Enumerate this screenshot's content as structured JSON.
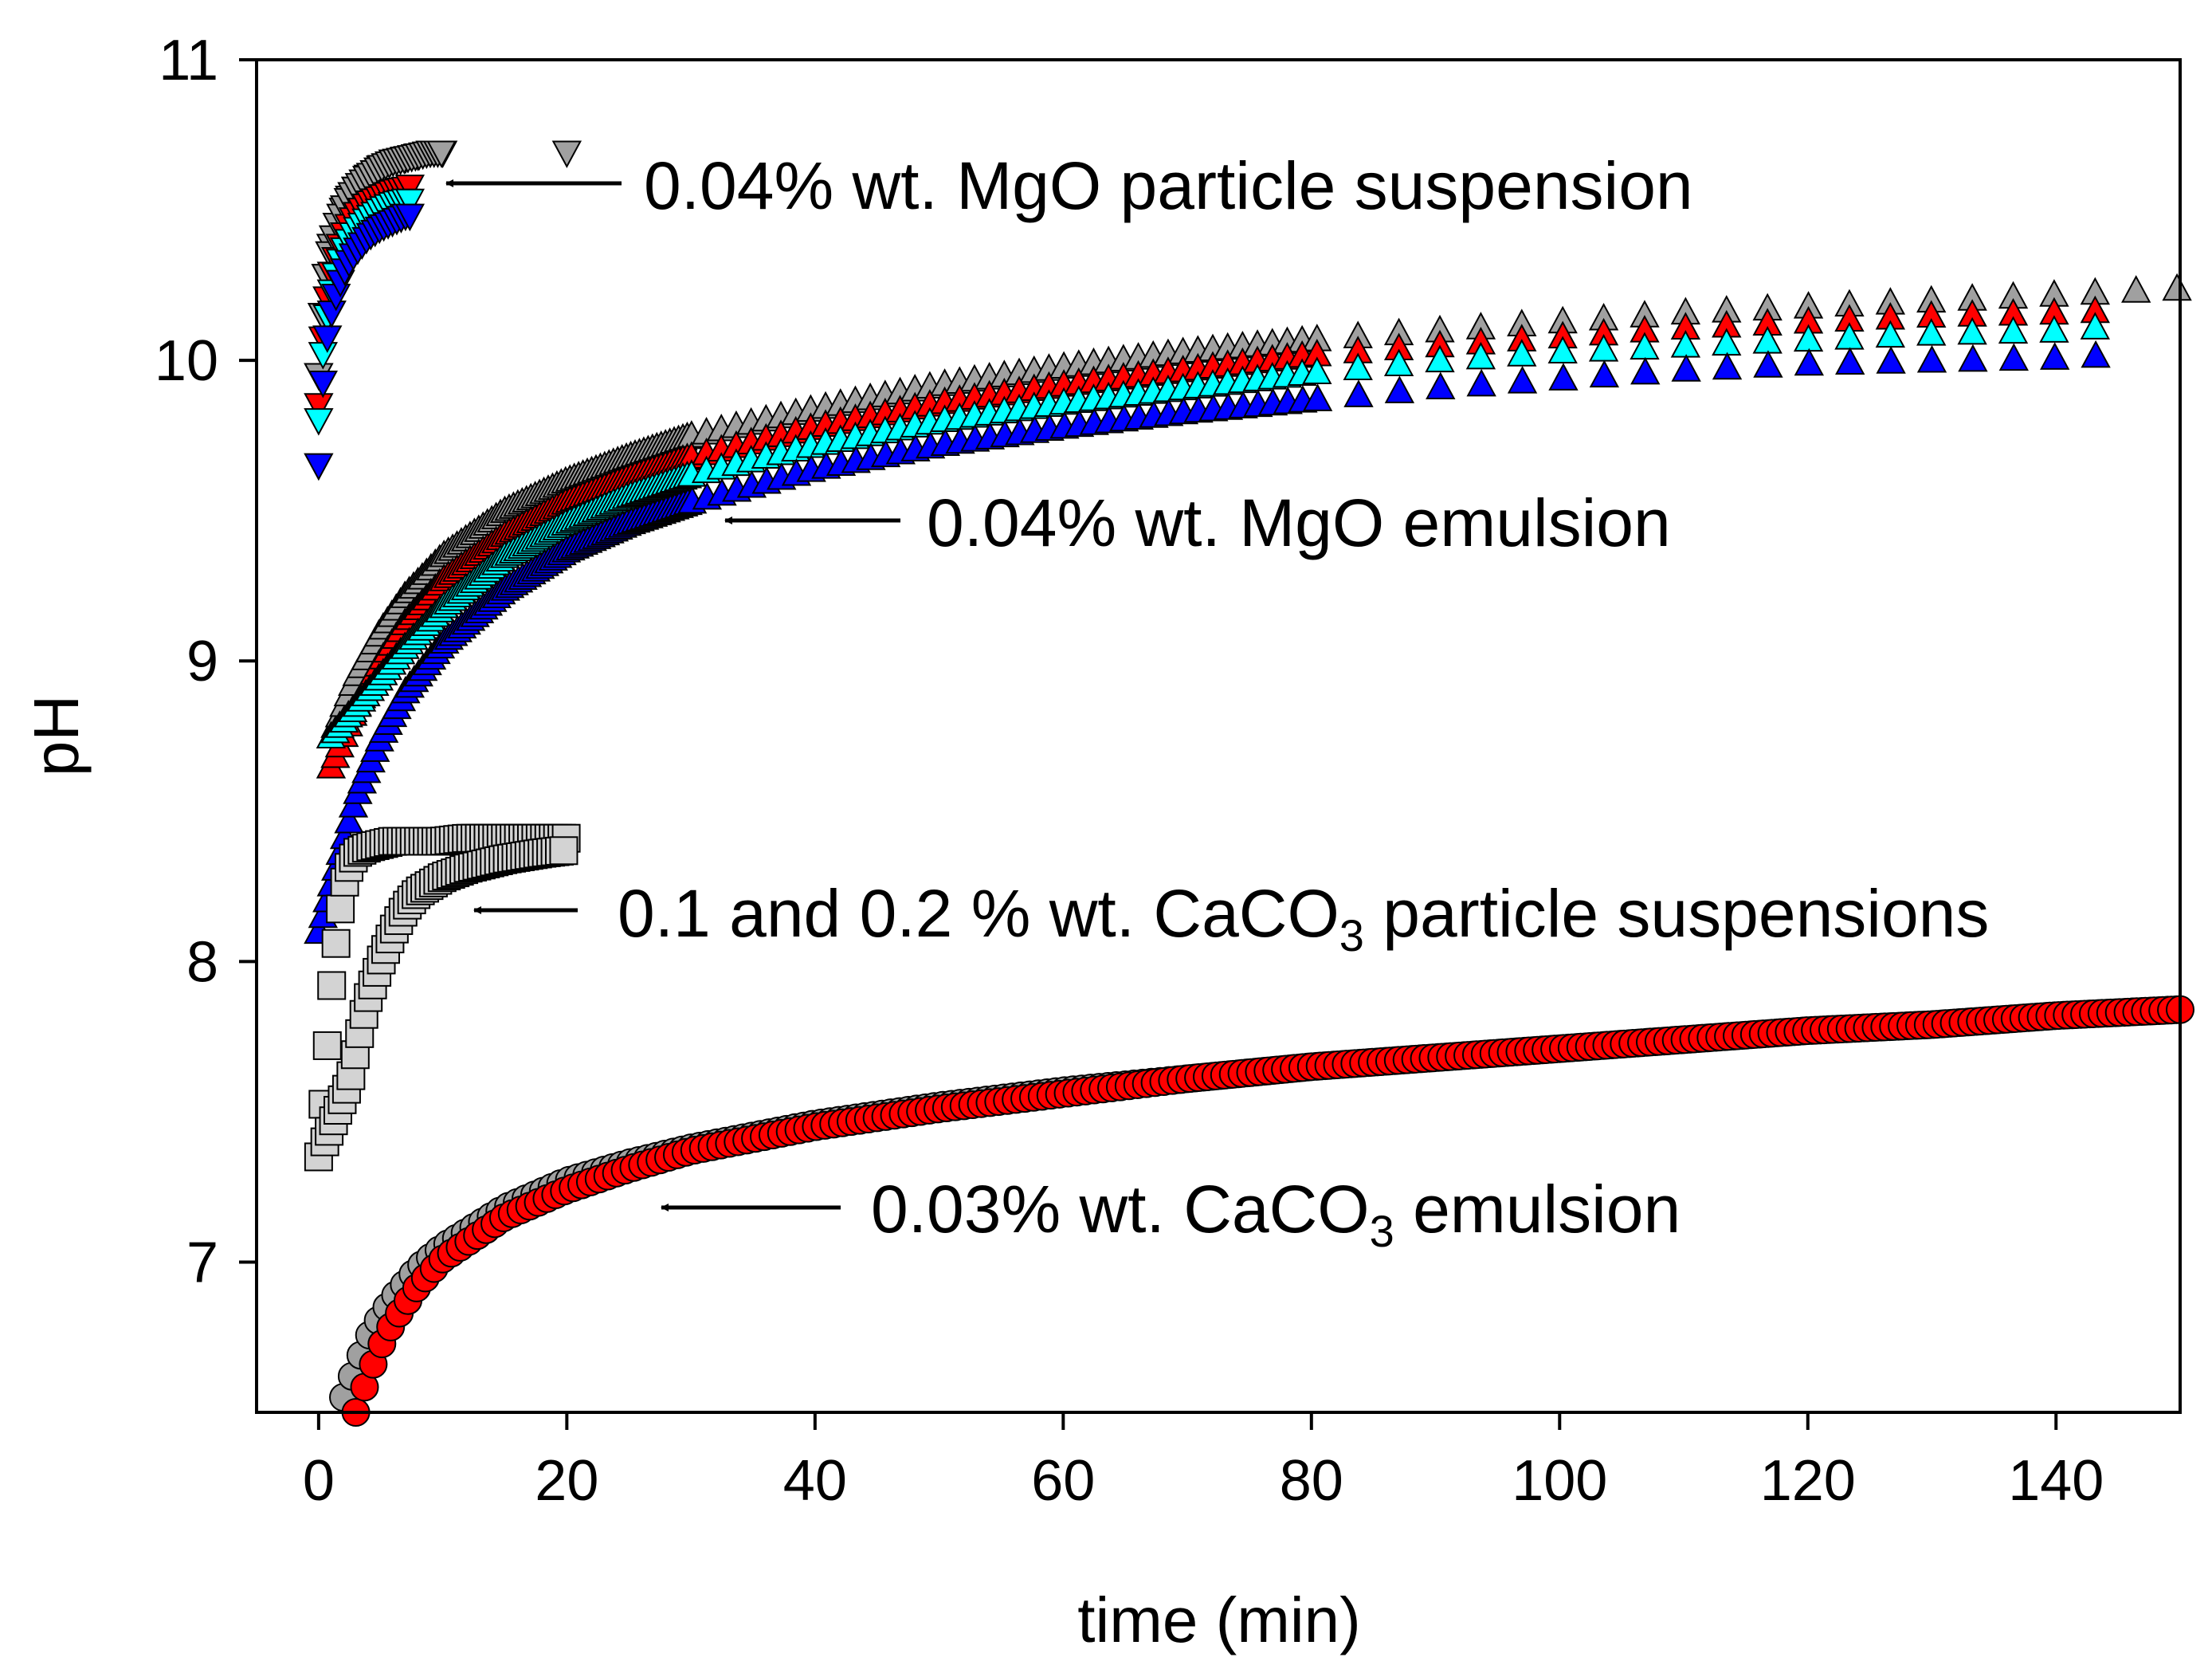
{
  "chart_data": {
    "type": "scatter",
    "title": "",
    "xlabel": "time (min)",
    "ylabel": "pH",
    "xlim": [
      -5,
      150
    ],
    "ylim": [
      6.5,
      11
    ],
    "xticks": [
      0,
      20,
      40,
      60,
      80,
      100,
      120,
      140
    ],
    "yticks": [
      7,
      8,
      9,
      10,
      11
    ],
    "grid": false,
    "legend": "none",
    "series": [
      {
        "name": "MgO particle suspension (gray)",
        "marker": "triangle-down",
        "color": "#a0a0a0",
        "x": [
          0,
          0.3,
          0.6,
          1,
          1.5,
          2,
          2.5,
          3,
          4,
          5,
          6,
          7,
          8,
          9,
          10,
          20
        ],
        "y": [
          9.95,
          10.15,
          10.28,
          10.38,
          10.45,
          10.5,
          10.54,
          10.57,
          10.61,
          10.64,
          10.66,
          10.67,
          10.68,
          10.69,
          10.69,
          10.69
        ]
      },
      {
        "name": "MgO particle suspension (red)",
        "marker": "triangle-down",
        "color": "#ff0000",
        "x": [
          0,
          0.3,
          0.6,
          1,
          1.5,
          2,
          2.5,
          3,
          4,
          5,
          6,
          7,
          7.5
        ],
        "y": [
          9.85,
          10.05,
          10.18,
          10.28,
          10.35,
          10.41,
          10.45,
          10.48,
          10.52,
          10.54,
          10.56,
          10.57,
          10.58
        ]
      },
      {
        "name": "MgO particle suspension (cyan)",
        "marker": "triangle-down",
        "color": "#00ffff",
        "x": [
          0,
          0.3,
          0.6,
          1,
          1.5,
          2,
          2.5,
          3,
          4,
          5,
          6,
          7,
          7.5
        ],
        "y": [
          9.8,
          10.0,
          10.12,
          10.22,
          10.3,
          10.36,
          10.4,
          10.43,
          10.47,
          10.5,
          10.52,
          10.53,
          10.53
        ]
      },
      {
        "name": "MgO particle suspension (blue)",
        "marker": "triangle-down",
        "color": "#0000ff",
        "x": [
          0,
          0.3,
          0.6,
          1,
          1.5,
          2,
          2.5,
          3,
          4,
          5,
          6,
          7,
          7.5
        ],
        "y": [
          9.65,
          9.9,
          10.05,
          10.15,
          10.23,
          10.29,
          10.33,
          10.36,
          10.41,
          10.44,
          10.46,
          10.48,
          10.48
        ]
      },
      {
        "name": "MgO emulsion (gray)",
        "marker": "triangle-up",
        "color": "#a0a0a0",
        "x": [
          1,
          2,
          3,
          5,
          7,
          10,
          15,
          20,
          25,
          30,
          40,
          50,
          60,
          70,
          80,
          90,
          100,
          110,
          120,
          130,
          140,
          150
        ],
        "y": [
          8.75,
          8.85,
          8.95,
          9.1,
          9.22,
          9.35,
          9.5,
          9.6,
          9.68,
          9.75,
          9.84,
          9.92,
          9.98,
          10.03,
          10.07,
          10.1,
          10.13,
          10.16,
          10.18,
          10.2,
          10.22,
          10.24
        ]
      },
      {
        "name": "MgO emulsion (red)",
        "marker": "triangle-up",
        "color": "#ff0000",
        "x": [
          1,
          2,
          3,
          5,
          7,
          10,
          15,
          20,
          25,
          30,
          40,
          50,
          60,
          70,
          80,
          90,
          100,
          110,
          120,
          130,
          140,
          146
        ],
        "y": [
          8.65,
          8.75,
          8.85,
          9.0,
          9.13,
          9.27,
          9.42,
          9.53,
          9.61,
          9.68,
          9.78,
          9.86,
          9.92,
          9.97,
          10.02,
          10.05,
          10.08,
          10.11,
          10.13,
          10.15,
          10.16,
          10.17
        ]
      },
      {
        "name": "MgO emulsion (cyan)",
        "marker": "triangle-up",
        "color": "#00ffff",
        "x": [
          1,
          2,
          3,
          5,
          7,
          10,
          15,
          20,
          25,
          30,
          40,
          50,
          60,
          70,
          80,
          90,
          100,
          110,
          120,
          130,
          140,
          146
        ],
        "y": [
          8.75,
          8.8,
          8.85,
          8.95,
          9.05,
          9.18,
          9.35,
          9.46,
          9.55,
          9.62,
          9.72,
          9.8,
          9.86,
          9.91,
          9.96,
          10.0,
          10.03,
          10.05,
          10.07,
          10.09,
          10.1,
          10.12
        ]
      },
      {
        "name": "MgO emulsion (blue)",
        "marker": "triangle-up",
        "color": "#0000ff",
        "x": [
          0,
          1,
          2,
          3,
          5,
          7,
          10,
          15,
          20,
          25,
          30,
          40,
          50,
          60,
          70,
          80,
          90,
          100,
          110,
          120,
          130,
          140,
          145
        ],
        "y": [
          8.1,
          8.25,
          8.4,
          8.55,
          8.75,
          8.9,
          9.06,
          9.24,
          9.37,
          9.46,
          9.53,
          9.64,
          9.72,
          9.78,
          9.83,
          9.87,
          9.91,
          9.94,
          9.97,
          9.99,
          10.0,
          10.01,
          10.02
        ]
      },
      {
        "name": "CaCO3 particle suspension 0.1%",
        "marker": "square",
        "color": "#d3d3d3",
        "x": [
          0,
          0.5,
          1,
          1.5,
          2,
          2.5,
          3,
          4,
          5,
          6,
          8,
          10,
          12,
          15,
          18,
          20
        ],
        "y": [
          7.35,
          7.6,
          7.9,
          8.1,
          8.25,
          8.32,
          8.36,
          8.38,
          8.39,
          8.4,
          8.4,
          8.4,
          8.41,
          8.41,
          8.41,
          8.41
        ]
      },
      {
        "name": "CaCO3 particle suspension 0.2%",
        "marker": "square",
        "color": "#d3d3d3",
        "x": [
          0.5,
          1,
          1.5,
          2,
          2.5,
          3,
          3.5,
          4,
          5,
          6,
          7,
          8,
          10,
          12,
          15,
          18,
          20
        ],
        "y": [
          7.4,
          7.45,
          7.5,
          7.55,
          7.6,
          7.7,
          7.8,
          7.88,
          8.0,
          8.1,
          8.18,
          8.23,
          8.28,
          8.31,
          8.34,
          8.36,
          8.37
        ]
      },
      {
        "name": "CaCO3 emulsion (gray)",
        "marker": "circle",
        "color": "#a0a0a0",
        "x": [
          2,
          3,
          4,
          5,
          6,
          8,
          10,
          15,
          20,
          25,
          30,
          40,
          50,
          60,
          70,
          80,
          90,
          100,
          110,
          120,
          130,
          140,
          150
        ],
        "y": [
          6.55,
          6.65,
          6.75,
          6.82,
          6.88,
          6.98,
          7.05,
          7.18,
          7.27,
          7.33,
          7.38,
          7.46,
          7.52,
          7.57,
          7.61,
          7.65,
          7.68,
          7.71,
          7.74,
          7.77,
          7.79,
          7.82,
          7.84
        ]
      },
      {
        "name": "CaCO3 emulsion (red)",
        "marker": "circle",
        "color": "#ff0000",
        "x": [
          3,
          4,
          5,
          6,
          8,
          10,
          15,
          20,
          25,
          30,
          40,
          50,
          60,
          70,
          80,
          90,
          100,
          110,
          120,
          130,
          140,
          150
        ],
        "y": [
          6.5,
          6.62,
          6.72,
          6.8,
          6.92,
          7.01,
          7.15,
          7.24,
          7.31,
          7.37,
          7.45,
          7.51,
          7.56,
          7.61,
          7.65,
          7.68,
          7.71,
          7.74,
          7.77,
          7.79,
          7.82,
          7.84
        ]
      }
    ],
    "annotations": [
      {
        "label": "0.04% wt. MgO particle suspension",
        "target_x": 10,
        "target_y": 10.6
      },
      {
        "label": "0.04% wt. MgO emulsion",
        "target_x": 33,
        "target_y": 9.43
      },
      {
        "label_main": "0.1 and 0.2 % wt. CaCO",
        "label_sub": "3",
        "label_tail": " particle suspensions",
        "target_x": 12,
        "target_y": 8.15
      },
      {
        "label_main": "0.03% wt. CaCO",
        "label_sub": "3",
        "label_tail": " emulsion",
        "target_x": 27,
        "target_y": 7.16
      }
    ]
  }
}
